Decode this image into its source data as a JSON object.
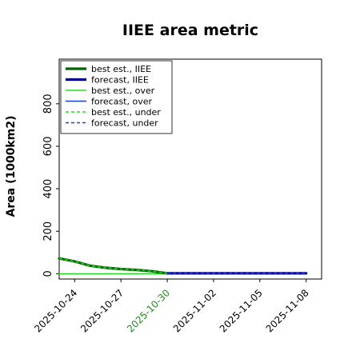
{
  "chart_data": {
    "type": "line",
    "title": "IIEE area metric",
    "xlabel": "",
    "ylabel": "Area (1000km2)",
    "x_ticks": [
      "2025-10-24",
      "2025-10-27",
      "2025-10-30",
      "2025-11-02",
      "2025-11-05",
      "2025-11-08"
    ],
    "highlight_tick": "2025-10-30",
    "highlight_color": "#228b22",
    "xlim": [
      "2025-10-23",
      "2025-11-09"
    ],
    "y_ticks": [
      0,
      200,
      400,
      600,
      800
    ],
    "ylim": [
      -25,
      1010
    ],
    "legend_position": "upper-left",
    "grid": false,
    "series": [
      {
        "name": "best est., IIEE",
        "color": "#006400",
        "style": "solid",
        "weight": "thick",
        "x": [
          "2025-10-23",
          "2025-10-24",
          "2025-10-25",
          "2025-10-26",
          "2025-10-27",
          "2025-10-28",
          "2025-10-29",
          "2025-10-30"
        ],
        "y": [
          72,
          58,
          38,
          28,
          22,
          18,
          12,
          2
        ]
      },
      {
        "name": "forecast, IIEE",
        "color": "#00008b",
        "style": "solid",
        "weight": "thick",
        "x": [
          "2025-10-30",
          "2025-10-31",
          "2025-11-01",
          "2025-11-02",
          "2025-11-03",
          "2025-11-04",
          "2025-11-05",
          "2025-11-06",
          "2025-11-07",
          "2025-11-08"
        ],
        "y": [
          2,
          2,
          2,
          2,
          2,
          2,
          2,
          2,
          2,
          2
        ]
      },
      {
        "name": "best est., over",
        "color": "#22dd22",
        "style": "solid",
        "weight": "thin",
        "x": [
          "2025-10-23",
          "2025-10-24",
          "2025-10-25",
          "2025-10-26",
          "2025-10-27",
          "2025-10-28",
          "2025-10-29",
          "2025-10-30"
        ],
        "y": [
          0,
          0,
          0,
          0,
          0,
          0,
          0,
          0
        ]
      },
      {
        "name": "forecast, over",
        "color": "#1f3fdd",
        "style": "solid",
        "weight": "thin",
        "x": [
          "2025-10-30",
          "2025-10-31",
          "2025-11-01",
          "2025-11-02",
          "2025-11-03",
          "2025-11-04",
          "2025-11-05",
          "2025-11-06",
          "2025-11-07",
          "2025-11-08"
        ],
        "y": [
          0,
          0,
          0,
          0,
          0,
          0,
          0,
          0,
          0,
          0
        ]
      },
      {
        "name": "best est., under",
        "color": "#22dd22",
        "style": "dashed",
        "weight": "thin",
        "x": [
          "2025-10-23",
          "2025-10-24",
          "2025-10-25",
          "2025-10-26",
          "2025-10-27",
          "2025-10-28",
          "2025-10-29",
          "2025-10-30"
        ],
        "y": [
          72,
          58,
          38,
          28,
          22,
          18,
          12,
          2
        ]
      },
      {
        "name": "forecast, under",
        "color": "#1f3fdd",
        "style": "dashed",
        "weight": "thin",
        "x": [
          "2025-10-30",
          "2025-10-31",
          "2025-11-01",
          "2025-11-02",
          "2025-11-03",
          "2025-11-04",
          "2025-11-05",
          "2025-11-06",
          "2025-11-07",
          "2025-11-08"
        ],
        "y": [
          2,
          2,
          2,
          2,
          2,
          2,
          2,
          2,
          2,
          2
        ]
      }
    ]
  }
}
